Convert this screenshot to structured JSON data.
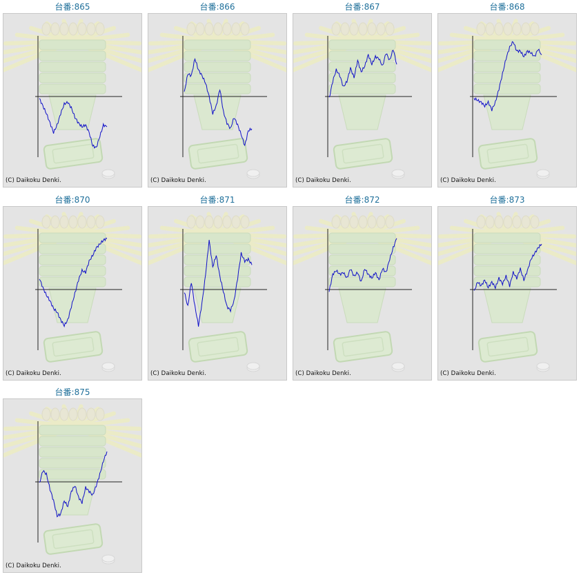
{
  "title_prefix": "台番:",
  "copyright": "(C) Daikoku Denki.",
  "colors": {
    "line": "#1010c8",
    "axis": "#222222",
    "title": "#1e6f9a",
    "panel": "#e4e4e4"
  },
  "chart_data": [
    {
      "type": "line",
      "label": "865",
      "values": [
        -0.05,
        -0.25,
        -0.45,
        -0.7,
        -0.95,
        -0.75,
        -0.45,
        -0.2,
        -0.15,
        -0.3,
        -0.55,
        -0.7,
        -0.8,
        -0.75,
        -0.95,
        -1.3,
        -1.35,
        -1.05,
        -0.75,
        -0.8
      ],
      "ylim": [
        -1.6,
        1.6
      ]
    },
    {
      "type": "line",
      "label": "866",
      "values": [
        0.1,
        0.6,
        0.55,
        1.0,
        0.7,
        0.55,
        0.35,
        0.0,
        -0.45,
        -0.25,
        0.2,
        -0.4,
        -0.7,
        -0.85,
        -0.55,
        -0.75,
        -1.0,
        -1.3,
        -0.9,
        -0.85
      ],
      "ylim": [
        -1.6,
        1.6
      ]
    },
    {
      "type": "line",
      "label": "867",
      "values": [
        -0.05,
        0.4,
        0.7,
        0.55,
        0.25,
        0.4,
        0.75,
        0.5,
        0.95,
        0.65,
        0.8,
        1.1,
        0.85,
        1.05,
        1.0,
        0.8,
        1.15,
        0.95,
        1.25,
        0.85
      ],
      "ylim": [
        -1.6,
        1.6
      ]
    },
    {
      "type": "line",
      "label": "868",
      "values": [
        -0.05,
        -0.1,
        -0.15,
        -0.25,
        -0.15,
        -0.35,
        -0.15,
        0.2,
        0.6,
        1.0,
        1.3,
        1.45,
        1.2,
        1.2,
        1.05,
        1.2,
        1.15,
        1.05,
        1.25,
        1.1
      ],
      "ylim": [
        -1.6,
        1.6
      ]
    },
    {
      "type": "line",
      "label": "870",
      "values": [
        0.3,
        0.05,
        -0.15,
        -0.3,
        -0.5,
        -0.6,
        -0.8,
        -0.95,
        -0.8,
        -0.45,
        -0.1,
        0.25,
        0.5,
        0.45,
        0.75,
        0.9,
        1.1,
        1.2,
        1.3,
        1.35
      ],
      "ylim": [
        -1.6,
        1.6
      ]
    },
    {
      "type": "line",
      "label": "871",
      "values": [
        -0.05,
        -0.45,
        0.2,
        -0.45,
        -0.95,
        -0.35,
        0.4,
        1.3,
        0.6,
        0.9,
        0.35,
        -0.05,
        -0.45,
        -0.55,
        -0.3,
        0.3,
        0.95,
        0.75,
        0.8,
        0.65
      ],
      "ylim": [
        -1.6,
        1.6
      ]
    },
    {
      "type": "line",
      "label": "872",
      "values": [
        -0.05,
        0.4,
        0.5,
        0.4,
        0.45,
        0.3,
        0.55,
        0.35,
        0.45,
        0.2,
        0.55,
        0.4,
        0.3,
        0.45,
        0.25,
        0.55,
        0.45,
        0.8,
        1.1,
        1.35
      ],
      "ylim": [
        -1.6,
        1.6
      ]
    },
    {
      "type": "line",
      "label": "873",
      "values": [
        -0.05,
        0.2,
        0.1,
        0.25,
        0.05,
        0.2,
        0.05,
        0.3,
        0.15,
        0.35,
        0.1,
        0.45,
        0.3,
        0.55,
        0.25,
        0.5,
        0.8,
        0.95,
        1.1,
        1.2
      ],
      "ylim": [
        -1.6,
        1.6
      ]
    },
    {
      "type": "line",
      "label": "875",
      "values": [
        -0.05,
        0.3,
        0.2,
        -0.2,
        -0.5,
        -0.9,
        -0.85,
        -0.5,
        -0.65,
        -0.25,
        -0.1,
        -0.4,
        -0.55,
        -0.15,
        -0.25,
        -0.35,
        -0.1,
        0.2,
        0.55,
        0.8
      ],
      "ylim": [
        -1.6,
        1.6
      ]
    }
  ]
}
